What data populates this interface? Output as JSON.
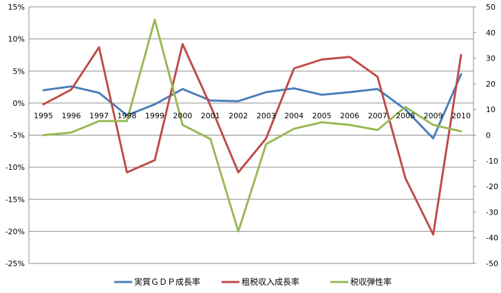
{
  "chart_data": {
    "type": "line",
    "categories": [
      "1995",
      "1996",
      "1997",
      "1998",
      "1999",
      "2000",
      "2001",
      "2002",
      "2003",
      "2004",
      "2005",
      "2006",
      "2007",
      "2008",
      "2009",
      "2010"
    ],
    "y_left": {
      "min": -25,
      "max": 15,
      "step": 5,
      "format": "percent",
      "tick_labels": [
        "15%",
        "10%",
        "5%",
        "0%",
        "-5%",
        "-10%",
        "-15%",
        "-20%",
        "-25%"
      ]
    },
    "y_right": {
      "min": -50,
      "max": 50,
      "step": 10,
      "tick_labels": [
        "50",
        "40",
        "30",
        "20",
        "10",
        "0",
        "-10",
        "-20",
        "-30",
        "-40",
        "-50"
      ]
    },
    "series": [
      {
        "name": "実質ＧＤＰ成長率",
        "axis": "left",
        "color": "#4a7ebb",
        "values": [
          2.0,
          2.6,
          1.6,
          -1.9,
          -0.2,
          2.2,
          0.4,
          0.3,
          1.7,
          2.3,
          1.3,
          1.7,
          2.2,
          -1.0,
          -5.5,
          4.5
        ]
      },
      {
        "name": "租税収入成長率",
        "axis": "left",
        "color": "#be4b48",
        "values": [
          -0.2,
          2.1,
          8.7,
          -10.8,
          -8.9,
          9.2,
          -0.4,
          -10.8,
          -5.5,
          5.4,
          6.8,
          7.2,
          4.1,
          -11.7,
          -20.5,
          7.5
        ]
      },
      {
        "name": "税収弾性率",
        "axis": "right",
        "color": "#98b954",
        "values": [
          0.0,
          1.0,
          5.5,
          5.5,
          45.0,
          4.0,
          -1.5,
          -37.5,
          -3.5,
          2.5,
          5.0,
          4.0,
          2.0,
          11.0,
          4.0,
          1.5
        ]
      }
    ],
    "grid": true,
    "legend_position": "bottom"
  }
}
